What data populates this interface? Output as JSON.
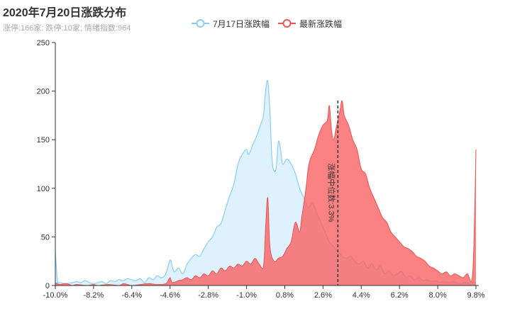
{
  "title": "2020年7月20日涨跌分布",
  "subtitle": "涨停:166家; 跌停:10家; 情绪指数:964",
  "legend": [
    {
      "name": "7月17日涨跌幅",
      "color": "#87cefa"
    },
    {
      "name": "最新涨跌幅",
      "color": "#f05050"
    }
  ],
  "chart_data": {
    "type": "area",
    "xlim": [
      -10.0,
      9.8
    ],
    "ylim": [
      0,
      250
    ],
    "x_ticks": [
      "-10.0%",
      "-8.2%",
      "-6.4%",
      "-4.6%",
      "-2.8%",
      "-1.0%",
      "0.8%",
      "2.6%",
      "4.4%",
      "6.2%",
      "8.0%",
      "9.8%"
    ],
    "x_tick_values": [
      -10.0,
      -8.2,
      -6.4,
      -4.6,
      -2.8,
      -1.0,
      0.8,
      2.6,
      4.4,
      6.2,
      8.0,
      9.8
    ],
    "y_ticks": [
      "0",
      "50",
      "100",
      "150",
      "200",
      "250"
    ],
    "y_tick_values": [
      0,
      50,
      100,
      150,
      200,
      250
    ],
    "markline": {
      "x": 3.3,
      "label": "涨幅中位数:3.3%"
    },
    "series": [
      {
        "name": "7月17日涨跌幅",
        "color": "#87cefa",
        "fill": "rgba(135,206,250,0.28)",
        "points": [
          [
            -10.0,
            35
          ],
          [
            -9.9,
            5
          ],
          [
            -9.8,
            3
          ],
          [
            -9.5,
            2
          ],
          [
            -9.2,
            3
          ],
          [
            -9.0,
            4
          ],
          [
            -8.8,
            3
          ],
          [
            -8.6,
            5
          ],
          [
            -8.4,
            3
          ],
          [
            -8.2,
            2
          ],
          [
            -8.0,
            3
          ],
          [
            -7.8,
            4
          ],
          [
            -7.6,
            2
          ],
          [
            -7.4,
            5
          ],
          [
            -7.2,
            4
          ],
          [
            -7.0,
            6
          ],
          [
            -6.8,
            5
          ],
          [
            -6.6,
            7
          ],
          [
            -6.4,
            6
          ],
          [
            -6.2,
            5
          ],
          [
            -6.0,
            7
          ],
          [
            -5.8,
            3
          ],
          [
            -5.6,
            8
          ],
          [
            -5.4,
            6
          ],
          [
            -5.2,
            10
          ],
          [
            -5.0,
            8
          ],
          [
            -4.8,
            12
          ],
          [
            -4.6,
            26
          ],
          [
            -4.5,
            20
          ],
          [
            -4.4,
            14
          ],
          [
            -4.2,
            18
          ],
          [
            -4.0,
            12
          ],
          [
            -3.8,
            22
          ],
          [
            -3.6,
            28
          ],
          [
            -3.4,
            32
          ],
          [
            -3.2,
            30
          ],
          [
            -3.0,
            38
          ],
          [
            -2.8,
            45
          ],
          [
            -2.6,
            50
          ],
          [
            -2.4,
            60
          ],
          [
            -2.2,
            64
          ],
          [
            -2.0,
            78
          ],
          [
            -1.8,
            92
          ],
          [
            -1.6,
            104
          ],
          [
            -1.4,
            125
          ],
          [
            -1.2,
            135
          ],
          [
            -1.0,
            140
          ],
          [
            -0.9,
            135
          ],
          [
            -0.7,
            145
          ],
          [
            -0.5,
            155
          ],
          [
            -0.3,
            168
          ],
          [
            -0.2,
            175
          ],
          [
            -0.1,
            200
          ],
          [
            0.0,
            210
          ],
          [
            0.1,
            180
          ],
          [
            0.2,
            130
          ],
          [
            0.3,
            118
          ],
          [
            0.4,
            122
          ],
          [
            0.5,
            148
          ],
          [
            0.6,
            140
          ],
          [
            0.7,
            125
          ],
          [
            0.9,
            130
          ],
          [
            1.1,
            125
          ],
          [
            1.3,
            115
          ],
          [
            1.5,
            100
          ],
          [
            1.7,
            90
          ],
          [
            1.9,
            80
          ],
          [
            2.1,
            85
          ],
          [
            2.3,
            75
          ],
          [
            2.5,
            65
          ],
          [
            2.7,
            55
          ],
          [
            2.9,
            45
          ],
          [
            3.1,
            40
          ],
          [
            3.3,
            35
          ],
          [
            3.5,
            30
          ],
          [
            3.7,
            28
          ],
          [
            3.9,
            30
          ],
          [
            4.1,
            25
          ],
          [
            4.3,
            22
          ],
          [
            4.5,
            25
          ],
          [
            4.7,
            18
          ],
          [
            4.9,
            22
          ],
          [
            5.1,
            16
          ],
          [
            5.3,
            20
          ],
          [
            5.5,
            12
          ],
          [
            5.7,
            15
          ],
          [
            5.9,
            10
          ],
          [
            6.1,
            12
          ],
          [
            6.3,
            14
          ],
          [
            6.5,
            8
          ],
          [
            6.7,
            10
          ],
          [
            6.9,
            6
          ],
          [
            7.1,
            8
          ],
          [
            7.3,
            5
          ],
          [
            7.5,
            6
          ],
          [
            7.7,
            4
          ],
          [
            7.9,
            5
          ],
          [
            8.1,
            3
          ],
          [
            8.3,
            4
          ],
          [
            8.5,
            3
          ],
          [
            8.7,
            4
          ],
          [
            8.9,
            3
          ],
          [
            9.1,
            2
          ],
          [
            9.3,
            3
          ],
          [
            9.5,
            2
          ],
          [
            9.7,
            3
          ],
          [
            9.8,
            2
          ]
        ]
      },
      {
        "name": "最新涨跌幅",
        "color": "#f05050",
        "fill": "rgba(250,95,95,0.78)",
        "points": [
          [
            -10.0,
            3
          ],
          [
            -9.8,
            1
          ],
          [
            -9.5,
            2
          ],
          [
            -9.2,
            0
          ],
          [
            -9.0,
            1
          ],
          [
            -8.5,
            0
          ],
          [
            -8.2,
            1
          ],
          [
            -8.0,
            0
          ],
          [
            -7.5,
            1
          ],
          [
            -7.0,
            0
          ],
          [
            -6.8,
            2
          ],
          [
            -6.6,
            1
          ],
          [
            -6.4,
            0
          ],
          [
            -6.0,
            1
          ],
          [
            -5.6,
            2
          ],
          [
            -5.2,
            1
          ],
          [
            -4.8,
            2
          ],
          [
            -4.6,
            8
          ],
          [
            -4.5,
            3
          ],
          [
            -4.2,
            5
          ],
          [
            -4.0,
            6
          ],
          [
            -3.8,
            8
          ],
          [
            -3.6,
            6
          ],
          [
            -3.4,
            10
          ],
          [
            -3.2,
            8
          ],
          [
            -3.0,
            12
          ],
          [
            -2.8,
            10
          ],
          [
            -2.6,
            15
          ],
          [
            -2.4,
            12
          ],
          [
            -2.2,
            18
          ],
          [
            -2.0,
            15
          ],
          [
            -1.8,
            20
          ],
          [
            -1.6,
            18
          ],
          [
            -1.4,
            22
          ],
          [
            -1.2,
            20
          ],
          [
            -1.0,
            25
          ],
          [
            -0.8,
            22
          ],
          [
            -0.6,
            28
          ],
          [
            -0.4,
            22
          ],
          [
            -0.2,
            20
          ],
          [
            -0.1,
            60
          ],
          [
            0.0,
            90
          ],
          [
            0.1,
            40
          ],
          [
            0.3,
            25
          ],
          [
            0.5,
            28
          ],
          [
            0.7,
            30
          ],
          [
            0.9,
            38
          ],
          [
            1.1,
            45
          ],
          [
            1.3,
            65
          ],
          [
            1.5,
            55
          ],
          [
            1.6,
            70
          ],
          [
            1.8,
            100
          ],
          [
            1.9,
            120
          ],
          [
            2.0,
            130
          ],
          [
            2.2,
            140
          ],
          [
            2.4,
            155
          ],
          [
            2.6,
            165
          ],
          [
            2.8,
            170
          ],
          [
            2.9,
            185
          ],
          [
            3.0,
            160
          ],
          [
            3.1,
            150
          ],
          [
            3.2,
            160
          ],
          [
            3.3,
            170
          ],
          [
            3.4,
            180
          ],
          [
            3.5,
            190
          ],
          [
            3.6,
            175
          ],
          [
            3.8,
            165
          ],
          [
            4.0,
            150
          ],
          [
            4.2,
            140
          ],
          [
            4.4,
            120
          ],
          [
            4.6,
            115
          ],
          [
            4.8,
            100
          ],
          [
            5.0,
            90
          ],
          [
            5.2,
            80
          ],
          [
            5.4,
            70
          ],
          [
            5.6,
            65
          ],
          [
            5.8,
            55
          ],
          [
            6.0,
            50
          ],
          [
            6.2,
            45
          ],
          [
            6.4,
            40
          ],
          [
            6.6,
            38
          ],
          [
            6.8,
            35
          ],
          [
            7.0,
            30
          ],
          [
            7.2,
            28
          ],
          [
            7.4,
            25
          ],
          [
            7.6,
            20
          ],
          [
            7.8,
            18
          ],
          [
            8.0,
            15
          ],
          [
            8.2,
            12
          ],
          [
            8.4,
            14
          ],
          [
            8.6,
            10
          ],
          [
            8.8,
            12
          ],
          [
            9.0,
            10
          ],
          [
            9.2,
            8
          ],
          [
            9.4,
            12
          ],
          [
            9.6,
            5
          ],
          [
            9.7,
            40
          ],
          [
            9.8,
            140
          ]
        ]
      }
    ]
  }
}
